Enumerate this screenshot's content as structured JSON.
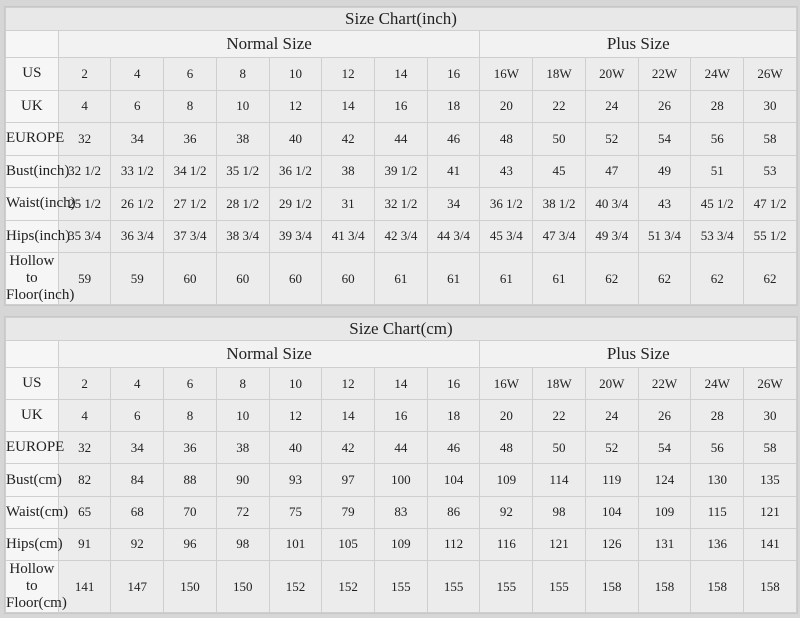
{
  "tables": [
    {
      "title": "Size Chart(inch)",
      "normal_label": "Normal Size",
      "plus_label": "Plus Size",
      "rows": [
        {
          "label": "US",
          "values": [
            "2",
            "4",
            "6",
            "8",
            "10",
            "12",
            "14",
            "16",
            "16W",
            "18W",
            "20W",
            "22W",
            "24W",
            "26W"
          ]
        },
        {
          "label": "UK",
          "values": [
            "4",
            "6",
            "8",
            "10",
            "12",
            "14",
            "16",
            "18",
            "20",
            "22",
            "24",
            "26",
            "28",
            "30"
          ]
        },
        {
          "label": "EUROPE",
          "values": [
            "32",
            "34",
            "36",
            "38",
            "40",
            "42",
            "44",
            "46",
            "48",
            "50",
            "52",
            "54",
            "56",
            "58"
          ]
        },
        {
          "label": "Bust(inch)",
          "values": [
            "32 1/2",
            "33 1/2",
            "34 1/2",
            "35 1/2",
            "36 1/2",
            "38",
            "39 1/2",
            "41",
            "43",
            "45",
            "47",
            "49",
            "51",
            "53"
          ]
        },
        {
          "label": "Waist(inch)",
          "values": [
            "25 1/2",
            "26 1/2",
            "27 1/2",
            "28 1/2",
            "29 1/2",
            "31",
            "32 1/2",
            "34",
            "36 1/2",
            "38 1/2",
            "40 3/4",
            "43",
            "45 1/2",
            "47 1/2"
          ]
        },
        {
          "label": "Hips(inch)",
          "values": [
            "35 3/4",
            "36 3/4",
            "37 3/4",
            "38 3/4",
            "39 3/4",
            "41 3/4",
            "42 3/4",
            "44 3/4",
            "45 3/4",
            "47 3/4",
            "49 3/4",
            "51 3/4",
            "53 3/4",
            "55 1/2"
          ]
        },
        {
          "label": "Hollow to Floor(inch)",
          "values": [
            "59",
            "59",
            "60",
            "60",
            "60",
            "60",
            "61",
            "61",
            "61",
            "61",
            "62",
            "62",
            "62",
            "62"
          ]
        }
      ]
    },
    {
      "title": "Size Chart(cm)",
      "normal_label": "Normal Size",
      "plus_label": "Plus Size",
      "rows": [
        {
          "label": "US",
          "values": [
            "2",
            "4",
            "6",
            "8",
            "10",
            "12",
            "14",
            "16",
            "16W",
            "18W",
            "20W",
            "22W",
            "24W",
            "26W"
          ]
        },
        {
          "label": "UK",
          "values": [
            "4",
            "6",
            "8",
            "10",
            "12",
            "14",
            "16",
            "18",
            "20",
            "22",
            "24",
            "26",
            "28",
            "30"
          ]
        },
        {
          "label": "EUROPE",
          "values": [
            "32",
            "34",
            "36",
            "38",
            "40",
            "42",
            "44",
            "46",
            "48",
            "50",
            "52",
            "54",
            "56",
            "58"
          ]
        },
        {
          "label": "Bust(cm)",
          "values": [
            "82",
            "84",
            "88",
            "90",
            "93",
            "97",
            "100",
            "104",
            "109",
            "114",
            "119",
            "124",
            "130",
            "135"
          ]
        },
        {
          "label": "Waist(cm)",
          "values": [
            "65",
            "68",
            "70",
            "72",
            "75",
            "79",
            "83",
            "86",
            "92",
            "98",
            "104",
            "109",
            "115",
            "121"
          ]
        },
        {
          "label": "Hips(cm)",
          "values": [
            "91",
            "92",
            "96",
            "98",
            "101",
            "105",
            "109",
            "112",
            "116",
            "121",
            "126",
            "131",
            "136",
            "141"
          ]
        },
        {
          "label": "Hollow to Floor(cm)",
          "values": [
            "141",
            "147",
            "150",
            "150",
            "152",
            "152",
            "155",
            "155",
            "155",
            "155",
            "158",
            "158",
            "158",
            "158"
          ]
        }
      ]
    }
  ]
}
